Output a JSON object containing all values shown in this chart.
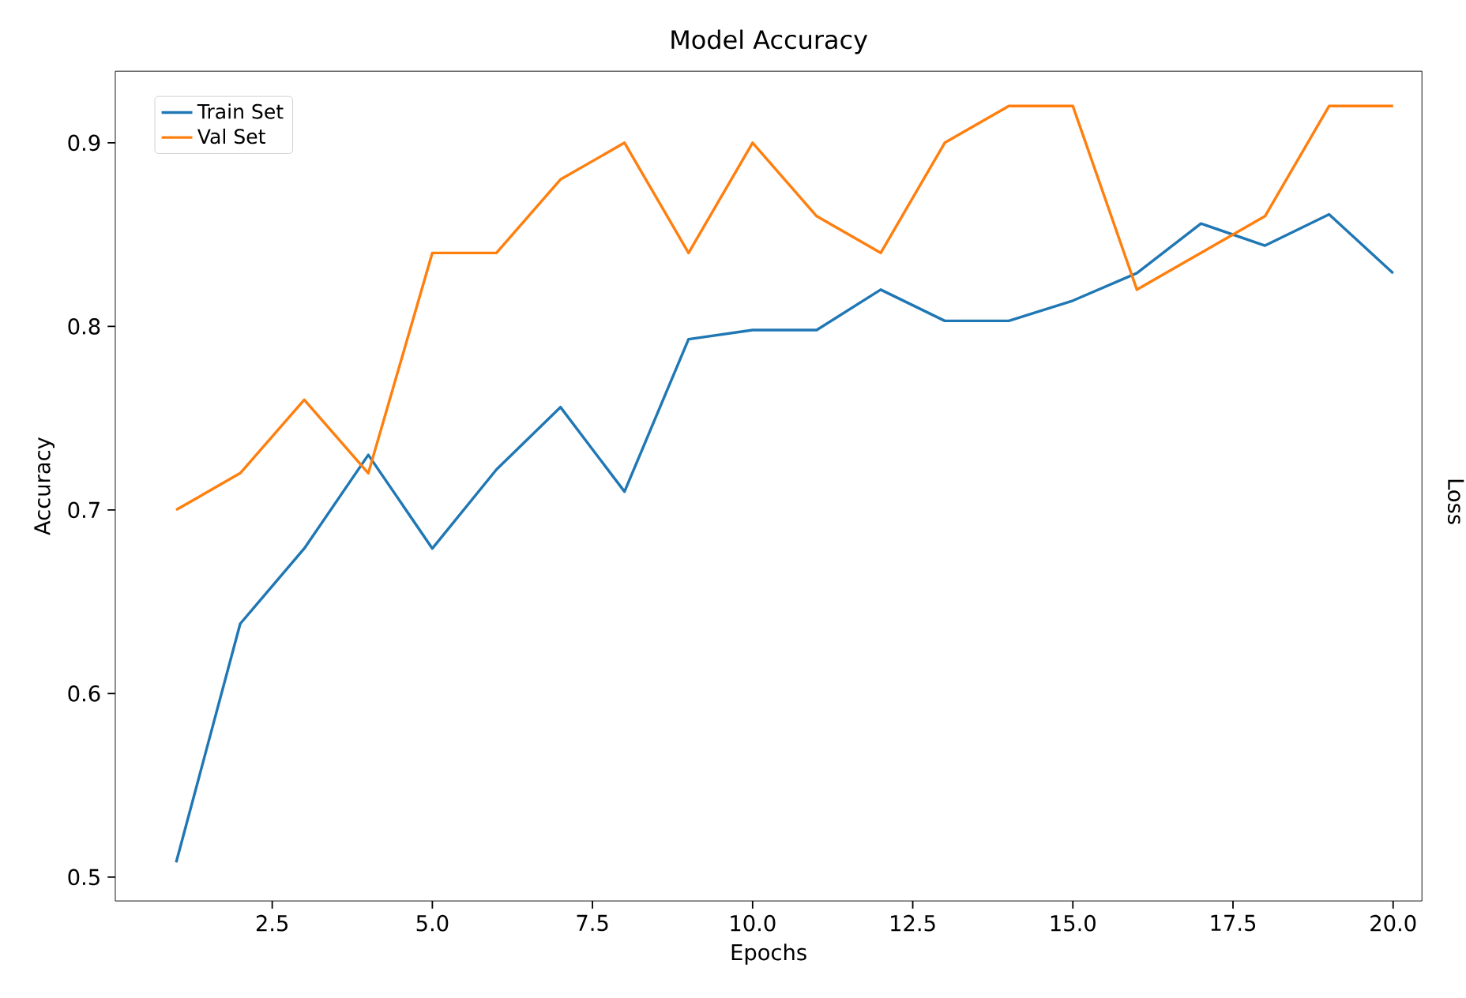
{
  "chart_data": {
    "type": "line",
    "title": "Model Accuracy",
    "xlabel": "Epochs",
    "ylabel": "Accuracy",
    "x": [
      1,
      2,
      3,
      4,
      5,
      6,
      7,
      8,
      9,
      10,
      11,
      12,
      13,
      14,
      15,
      16,
      17,
      18,
      19,
      20
    ],
    "series": [
      {
        "name": "Train Set",
        "color": "#1f77b4",
        "values": [
          0.508,
          0.638,
          0.679,
          0.73,
          0.679,
          0.722,
          0.756,
          0.71,
          0.793,
          0.798,
          0.798,
          0.82,
          0.803,
          0.803,
          0.814,
          0.829,
          0.856,
          0.844,
          0.861,
          0.829
        ]
      },
      {
        "name": "Val Set",
        "color": "#ff7f0e",
        "values": [
          0.7,
          0.72,
          0.76,
          0.72,
          0.84,
          0.84,
          0.88,
          0.9,
          0.84,
          0.9,
          0.86,
          0.84,
          0.9,
          0.92,
          0.92,
          0.82,
          0.84,
          0.86,
          0.92,
          0.92
        ]
      }
    ],
    "xlim": [
      0.05,
      20.45
    ],
    "ylim": [
      0.487,
      0.939
    ],
    "xticks": [
      {
        "value": 2.5,
        "label": "2.5"
      },
      {
        "value": 5,
        "label": "5.0"
      },
      {
        "value": 7.5,
        "label": "7.5"
      },
      {
        "value": 10,
        "label": "10.0"
      },
      {
        "value": 12.5,
        "label": "12.5"
      },
      {
        "value": 15,
        "label": "15.0"
      },
      {
        "value": 17.5,
        "label": "17.5"
      },
      {
        "value": 20,
        "label": "20.0"
      }
    ],
    "yticks": [
      0.5,
      0.6,
      0.7,
      0.8,
      0.9
    ],
    "legend": "top left",
    "grid": false,
    "marker": "none",
    "line_style": "solid",
    "annotations": [
      "Loss"
    ]
  }
}
